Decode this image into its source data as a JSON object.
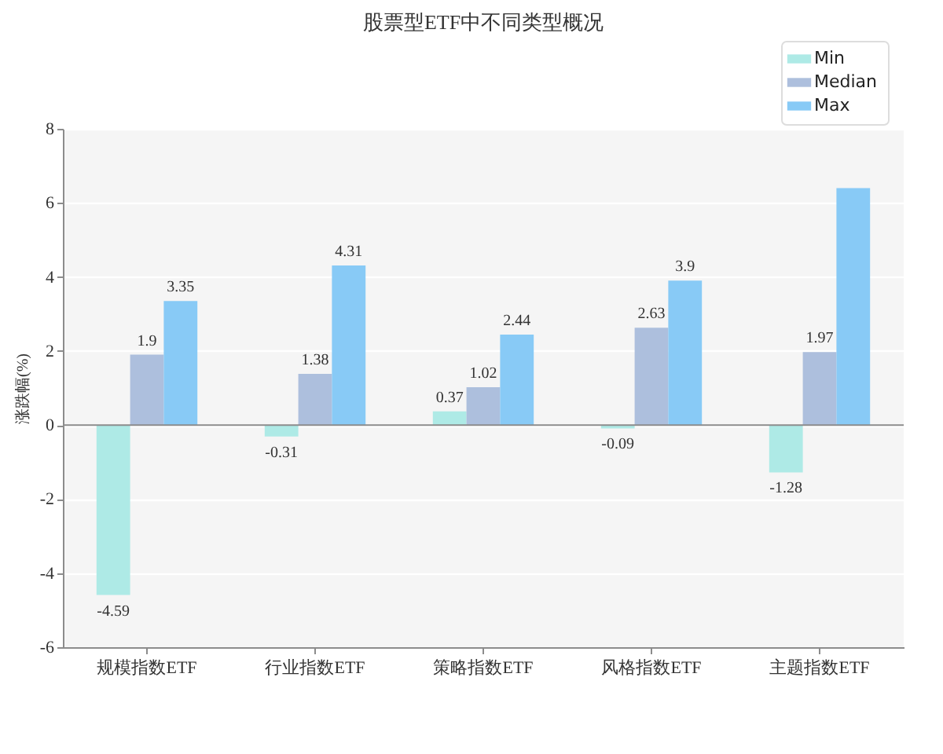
{
  "chart_data": {
    "type": "bar",
    "title": "股票型ETF中不同类型概况",
    "ylabel": "涨跌幅(%)",
    "categories": [
      "规模指数ETF",
      "行业指数ETF",
      "策略指数ETF",
      "风格指数ETF",
      "主题指数ETF"
    ],
    "series": [
      {
        "name": "Min",
        "color": "#aeeae6",
        "values": [
          -4.59,
          -0.31,
          0.37,
          -0.09,
          -1.28
        ],
        "value_labels": [
          "-4.59",
          "-0.31",
          "0.37",
          "-0.09",
          "-1.28"
        ]
      },
      {
        "name": "Median",
        "color": "#adbfdd",
        "values": [
          1.9,
          1.38,
          1.02,
          2.63,
          1.97
        ],
        "value_labels": [
          "1.9",
          "1.38",
          "1.02",
          "2.63",
          "1.97"
        ]
      },
      {
        "name": "Max",
        "color": "#88caf6",
        "values": [
          3.35,
          4.31,
          2.44,
          3.9,
          6.4
        ],
        "value_labels": [
          "3.35",
          "4.31",
          "2.44",
          "3.9",
          null
        ]
      }
    ],
    "ylim": [
      -6,
      8
    ],
    "yticks": [
      -6,
      -4,
      -2,
      0,
      2,
      4,
      6,
      8
    ],
    "grid": "y",
    "legend": "top right",
    "ref_lines": [
      {
        "axis": "y",
        "value": 0,
        "color": "#8c8c8c"
      }
    ]
  }
}
